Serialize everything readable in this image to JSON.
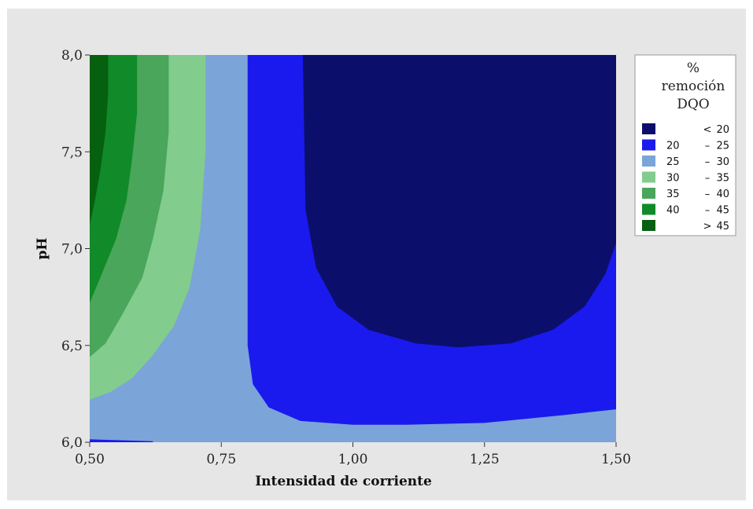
{
  "chart_data": {
    "type": "contour",
    "x": {
      "label": "Intensidad de corriente",
      "lim": [
        0.5,
        1.5
      ],
      "ticks": [
        "0,50",
        "0,75",
        "1,00",
        "1,25",
        "1,50"
      ],
      "tick_values": [
        0.5,
        0.75,
        1.0,
        1.25,
        1.5
      ]
    },
    "y": {
      "label": "pH",
      "lim": [
        6.0,
        8.0
      ],
      "ticks": [
        "6,0",
        "6,5",
        "7,0",
        "7,5",
        "8,0"
      ],
      "tick_values": [
        6.0,
        6.5,
        7.0,
        7.5,
        8.0
      ]
    },
    "legend": {
      "title_lines": [
        "%",
        "remoción",
        "DQO"
      ],
      "position": "right",
      "levels": [
        {
          "low": "",
          "sep": "<",
          "high": "20",
          "color": "#0b0f6b"
        },
        {
          "low": "20",
          "sep": "–",
          "high": "25",
          "color": "#1a1aee"
        },
        {
          "low": "25",
          "sep": "–",
          "high": "30",
          "color": "#7ba4d8"
        },
        {
          "low": "30",
          "sep": "–",
          "high": "35",
          "color": "#82cc8e"
        },
        {
          "low": "35",
          "sep": "–",
          "high": "40",
          "color": "#4aa65a"
        },
        {
          "low": "40",
          "sep": "–",
          "high": "45",
          "color": "#118a2a"
        },
        {
          "low": "",
          "sep": ">",
          "high": "45",
          "color": "#05600f"
        }
      ]
    },
    "regions": [
      {
        "level": 2,
        "color": "#7ba4d8",
        "polygon": [
          [
            0.5,
            6.0
          ],
          [
            1.5,
            6.0
          ],
          [
            1.5,
            8.0
          ],
          [
            0.5,
            8.0
          ]
        ]
      },
      {
        "level": 1,
        "color": "#1a1aee",
        "polygon": [
          [
            0.8,
            8.0
          ],
          [
            0.8,
            6.5
          ],
          [
            0.81,
            6.3
          ],
          [
            0.84,
            6.18
          ],
          [
            0.9,
            6.11
          ],
          [
            1.0,
            6.09
          ],
          [
            1.1,
            6.09
          ],
          [
            1.25,
            6.1
          ],
          [
            1.4,
            6.14
          ],
          [
            1.5,
            6.17
          ],
          [
            1.5,
            8.0
          ]
        ]
      },
      {
        "level": 0,
        "color": "#0b0f6b",
        "polygon": [
          [
            0.905,
            8.0
          ],
          [
            0.91,
            7.2
          ],
          [
            0.93,
            6.9
          ],
          [
            0.97,
            6.7
          ],
          [
            1.03,
            6.58
          ],
          [
            1.12,
            6.51
          ],
          [
            1.2,
            6.49
          ],
          [
            1.3,
            6.51
          ],
          [
            1.38,
            6.58
          ],
          [
            1.44,
            6.7
          ],
          [
            1.48,
            6.87
          ],
          [
            1.5,
            7.03
          ],
          [
            1.5,
            8.0
          ]
        ]
      },
      {
        "level": 3,
        "color": "#82cc8e",
        "polygon": [
          [
            0.5,
            8.0
          ],
          [
            0.72,
            8.0
          ],
          [
            0.72,
            7.5
          ],
          [
            0.71,
            7.1
          ],
          [
            0.69,
            6.8
          ],
          [
            0.66,
            6.6
          ],
          [
            0.62,
            6.45
          ],
          [
            0.58,
            6.33
          ],
          [
            0.54,
            6.26
          ],
          [
            0.5,
            6.22
          ]
        ]
      },
      {
        "level": 4,
        "color": "#4aa65a",
        "polygon": [
          [
            0.5,
            8.0
          ],
          [
            0.65,
            8.0
          ],
          [
            0.65,
            7.6
          ],
          [
            0.64,
            7.3
          ],
          [
            0.62,
            7.05
          ],
          [
            0.6,
            6.85
          ],
          [
            0.56,
            6.65
          ],
          [
            0.53,
            6.51
          ],
          [
            0.5,
            6.44
          ]
        ]
      },
      {
        "level": 5,
        "color": "#118a2a",
        "polygon": [
          [
            0.5,
            8.0
          ],
          [
            0.59,
            8.0
          ],
          [
            0.59,
            7.7
          ],
          [
            0.58,
            7.45
          ],
          [
            0.57,
            7.25
          ],
          [
            0.55,
            7.05
          ],
          [
            0.52,
            6.85
          ],
          [
            0.5,
            6.72
          ]
        ]
      },
      {
        "level": 6,
        "color": "#05600f",
        "polygon": [
          [
            0.5,
            8.0
          ],
          [
            0.535,
            8.0
          ],
          [
            0.535,
            7.8
          ],
          [
            0.53,
            7.6
          ],
          [
            0.52,
            7.4
          ],
          [
            0.51,
            7.25
          ],
          [
            0.5,
            7.12
          ]
        ]
      },
      {
        "level": 1,
        "color": "#1a1aee",
        "polygon": [
          [
            0.5,
            6.0
          ],
          [
            0.62,
            6.0
          ],
          [
            0.62,
            6.005
          ],
          [
            0.56,
            6.01
          ],
          [
            0.5,
            6.015
          ]
        ]
      }
    ]
  }
}
